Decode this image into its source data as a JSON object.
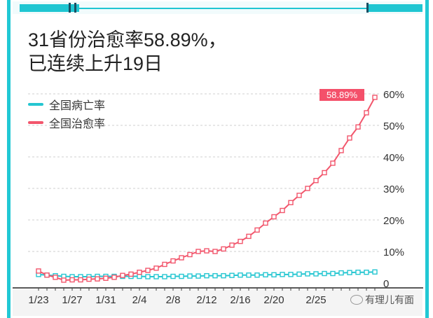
{
  "title": "31省份治愈率58.89%，\n已连续上升19日",
  "legend": [
    {
      "label": "全国病亡率",
      "color": "#25c6d1"
    },
    {
      "label": "全国治愈率",
      "color": "#f2566c"
    }
  ],
  "badge_label": "58.89%",
  "watermark": "有理儿有面",
  "chart_data": {
    "type": "line",
    "title": "31省份治愈率58.89%，已连续上升19日",
    "xlabel": "",
    "ylabel": "",
    "ylim": [
      0,
      60
    ],
    "ytick_labels": [
      "0",
      "10%",
      "20%",
      "30%",
      "40%",
      "50%",
      "60%"
    ],
    "yticks": [
      0,
      10,
      20,
      30,
      40,
      50,
      60
    ],
    "xtick_labels": [
      "1/23",
      "1/27",
      "1/31",
      "2/4",
      "2/8",
      "2/12",
      "2/16",
      "2/20",
      "2/25"
    ],
    "xtick_index": [
      0,
      4,
      8,
      12,
      16,
      20,
      24,
      28,
      33
    ],
    "x": [
      "1/23",
      "1/24",
      "1/25",
      "1/26",
      "1/27",
      "1/28",
      "1/29",
      "1/30",
      "1/31",
      "2/1",
      "2/2",
      "2/3",
      "2/4",
      "2/5",
      "2/6",
      "2/7",
      "2/8",
      "2/9",
      "2/10",
      "2/11",
      "2/12",
      "2/13",
      "2/14",
      "2/15",
      "2/16",
      "2/17",
      "2/18",
      "2/19",
      "2/20",
      "2/21",
      "2/22",
      "2/23",
      "2/24",
      "2/25",
      "2/26",
      "2/27",
      "2/28",
      "2/29",
      "3/1",
      "3/2",
      "3/3"
    ],
    "grid": true,
    "legend_position": "top-left",
    "series": [
      {
        "name": "全国病亡率",
        "color": "#25c6d1",
        "values": [
          2.7,
          2.5,
          2.3,
          2.1,
          2.0,
          2.0,
          2.0,
          2.1,
          2.1,
          2.1,
          2.1,
          2.1,
          2.1,
          2.0,
          2.0,
          2.0,
          2.1,
          2.1,
          2.2,
          2.2,
          2.3,
          2.3,
          2.3,
          2.4,
          2.5,
          2.5,
          2.5,
          2.6,
          2.6,
          2.7,
          2.7,
          2.8,
          2.9,
          2.9,
          3.0,
          3.0,
          3.2,
          3.3,
          3.4,
          3.4,
          3.5
        ]
      },
      {
        "name": "全国治愈率",
        "color": "#f2566c",
        "values": [
          3.8,
          2.5,
          1.8,
          0.9,
          1.0,
          1.0,
          1.2,
          1.3,
          1.5,
          1.8,
          2.4,
          2.8,
          3.4,
          4.0,
          4.7,
          5.9,
          7.0,
          8.0,
          9.0,
          10.0,
          10.2,
          10.0,
          10.8,
          12.0,
          13.2,
          14.8,
          16.8,
          19.0,
          21.0,
          23.0,
          25.5,
          27.8,
          30.0,
          32.5,
          35.0,
          38.0,
          42.0,
          46.0,
          49.5,
          54.0,
          58.89
        ]
      }
    ]
  }
}
